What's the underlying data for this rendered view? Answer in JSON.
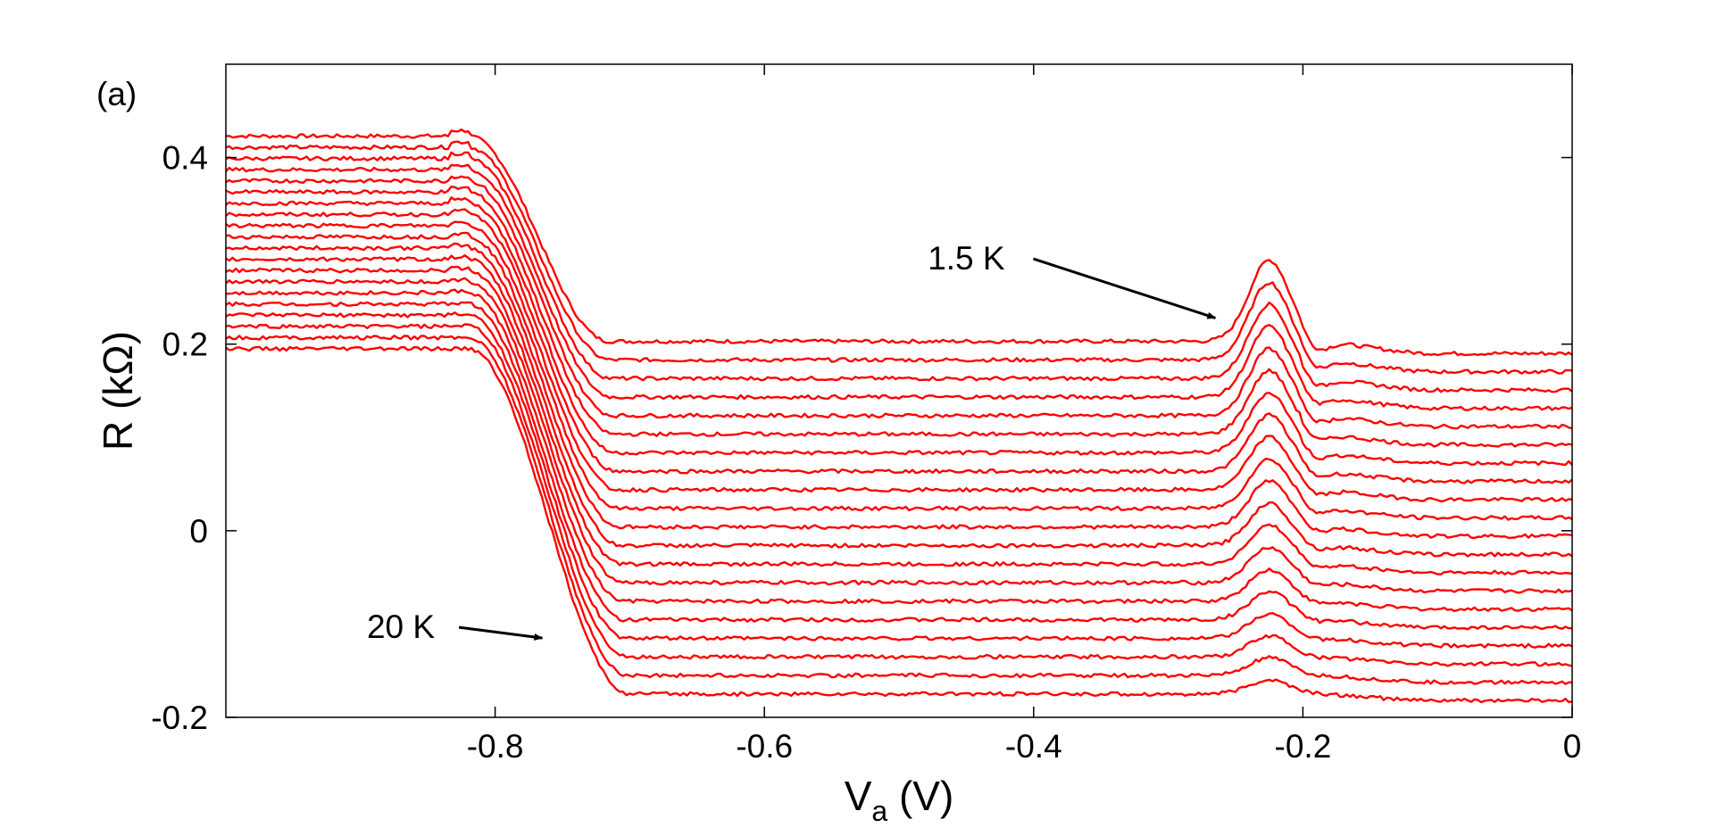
{
  "chart_data": {
    "type": "line",
    "panel_label": "(a)",
    "xlabel_main": "V",
    "xlabel_sub": "a",
    "xlabel_unit": " (V)",
    "ylabel": "R (kΩ)",
    "xlim": [
      -1.0,
      0.0
    ],
    "ylim": [
      -0.2,
      0.5
    ],
    "xticks": [
      -0.8,
      -0.6,
      -0.4,
      -0.2,
      0
    ],
    "xtick_labels": [
      "-0.8",
      "-0.6",
      "-0.4",
      "-0.2",
      "0"
    ],
    "yticks": [
      -0.2,
      0,
      0.2,
      0.4
    ],
    "ytick_labels": [
      "-0.2",
      "0",
      "0.2",
      "0.4"
    ],
    "grid": false,
    "line_color": "#ff0000",
    "annotations": [
      {
        "text": "1.5 K",
        "x": -0.45,
        "y": 0.28,
        "arrow_to": [
          -0.265,
          0.228
        ]
      },
      {
        "text": "20 K",
        "x": -0.87,
        "y": -0.115,
        "arrow_to": [
          -0.765,
          -0.115
        ]
      }
    ],
    "series_count": 20,
    "series_shape": {
      "left_plateau_x_end": -0.82,
      "drop_x_end_top": -0.715,
      "drop_x_end_bottom": -0.7,
      "peak_x": -0.225,
      "dip_x": -0.19,
      "left_plateau_top": 0.423,
      "left_plateau_bottom": 0.195,
      "mid_plateau_top": 0.203,
      "mid_plateau_bottom": -0.175,
      "peak_top": 0.29,
      "peak_bottom": -0.16,
      "right_plateau_top": 0.19,
      "right_plateau_bottom": -0.182
    }
  }
}
